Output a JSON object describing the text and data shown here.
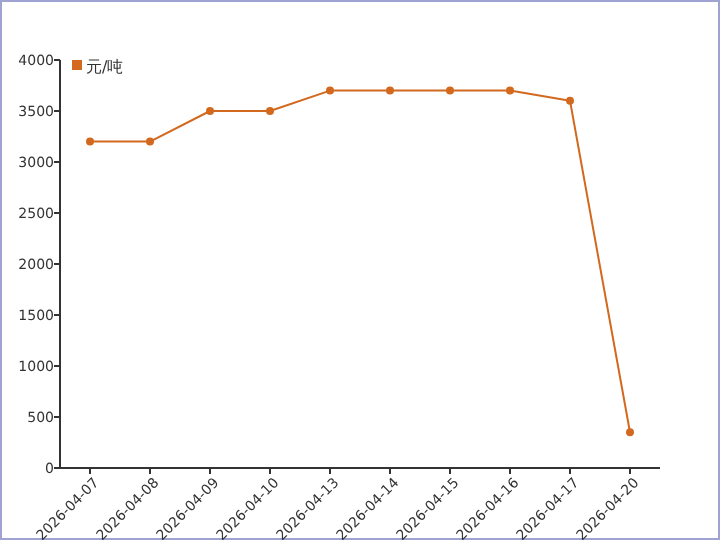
{
  "chart_data": {
    "type": "line",
    "categories": [
      "2026-04-07",
      "2026-04-08",
      "2026-04-09",
      "2026-04-10",
      "2026-04-13",
      "2026-04-14",
      "2026-04-15",
      "2026-04-16",
      "2026-04-17",
      "2026-04-20"
    ],
    "series": [
      {
        "name": "元/吨",
        "color": "#d2691e",
        "values": [
          3200,
          3200,
          3500,
          3500,
          3700,
          3700,
          3700,
          3700,
          3600,
          350
        ]
      }
    ],
    "ylim": [
      0,
      4000
    ],
    "yticks": [
      0,
      500,
      1000,
      1500,
      2000,
      2500,
      3000,
      3500,
      4000
    ],
    "grid": false,
    "legend": "top left",
    "marker": "circle",
    "line_style": "solid"
  }
}
